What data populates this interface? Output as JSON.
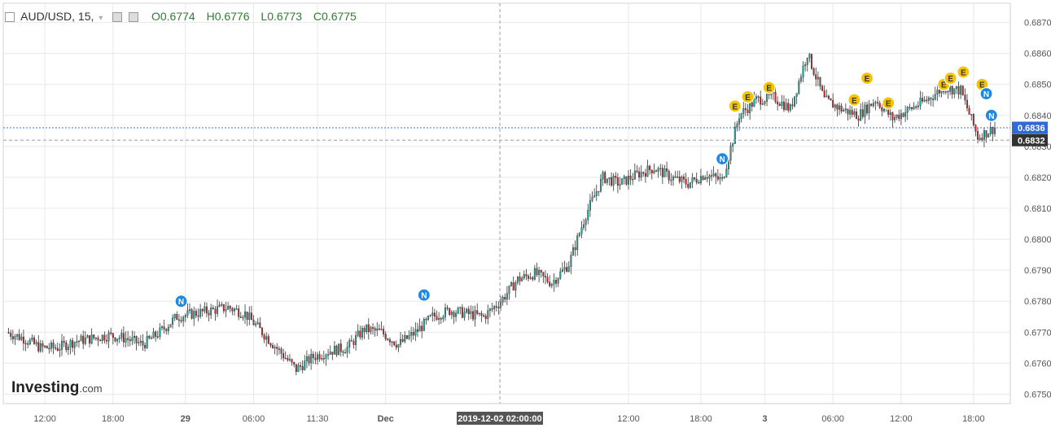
{
  "header": {
    "symbol": "AUD/USD, 15,",
    "open": "O0.6774",
    "high": "H0.6776",
    "low": "L0.6773",
    "close": "C0.6775"
  },
  "logo": {
    "name": "Investing",
    "suffix": ".com"
  },
  "price_tags": {
    "current": "0.6836",
    "crosshair": "0.6832"
  },
  "crosshair_time": "2019-12-02 02:00:00",
  "colors": {
    "up": "#26a69a",
    "down": "#c62828",
    "news": "#1e88e5",
    "event": "#f5c400",
    "grid": "#e8e8e8"
  },
  "chart_data": {
    "type": "candlestick",
    "ylim": [
      0.6748,
      0.6872
    ],
    "yticks": [
      "0.6870",
      "0.6860",
      "0.6850",
      "0.6840",
      "0.6830",
      "0.6820",
      "0.6810",
      "0.6800",
      "0.6790",
      "0.6780",
      "0.6770",
      "0.6760",
      "0.6750"
    ],
    "xticks": [
      "12:00",
      "18:00",
      "29",
      "06:00",
      "11:30",
      "Dec",
      "2019-12-02 02:00:00",
      "12:00",
      "18:00",
      "3",
      "06:00",
      "12:00",
      "18:00"
    ],
    "close_path": [
      {
        "t": 0,
        "v": 0.677
      },
      {
        "t": 2,
        "v": 0.6768
      },
      {
        "t": 4,
        "v": 0.6765
      },
      {
        "t": 6,
        "v": 0.6765
      },
      {
        "t": 8,
        "v": 0.6767
      },
      {
        "t": 12,
        "v": 0.6769
      },
      {
        "t": 14,
        "v": 0.6768
      },
      {
        "t": 16,
        "v": 0.6766
      },
      {
        "t": 18,
        "v": 0.677
      },
      {
        "t": 20,
        "v": 0.6775
      },
      {
        "t": 22,
        "v": 0.6776
      },
      {
        "t": 24,
        "v": 0.6777
      },
      {
        "t": 26,
        "v": 0.6778
      },
      {
        "t": 28,
        "v": 0.6776
      },
      {
        "t": 30,
        "v": 0.677
      },
      {
        "t": 32,
        "v": 0.6764
      },
      {
        "t": 34,
        "v": 0.6758
      },
      {
        "t": 36,
        "v": 0.6762
      },
      {
        "t": 38,
        "v": 0.6764
      },
      {
        "t": 40,
        "v": 0.6765
      },
      {
        "t": 42,
        "v": 0.6771
      },
      {
        "t": 44,
        "v": 0.677
      },
      {
        "t": 46,
        "v": 0.6766
      },
      {
        "t": 48,
        "v": 0.677
      },
      {
        "t": 50,
        "v": 0.6775
      },
      {
        "t": 52,
        "v": 0.6777
      },
      {
        "t": 54,
        "v": 0.6776
      },
      {
        "t": 56,
        "v": 0.6775
      },
      {
        "t": 58,
        "v": 0.678
      },
      {
        "t": 60,
        "v": 0.6787
      },
      {
        "t": 62,
        "v": 0.6789
      },
      {
        "t": 64,
        "v": 0.6786
      },
      {
        "t": 66,
        "v": 0.6792
      },
      {
        "t": 68,
        "v": 0.6808
      },
      {
        "t": 70,
        "v": 0.682
      },
      {
        "t": 72,
        "v": 0.6818
      },
      {
        "t": 74,
        "v": 0.6821
      },
      {
        "t": 76,
        "v": 0.6823
      },
      {
        "t": 78,
        "v": 0.682
      },
      {
        "t": 80,
        "v": 0.6818
      },
      {
        "t": 82,
        "v": 0.6821
      },
      {
        "t": 84,
        "v": 0.6819
      },
      {
        "t": 86,
        "v": 0.684
      },
      {
        "t": 88,
        "v": 0.6845
      },
      {
        "t": 90,
        "v": 0.6846
      },
      {
        "t": 92,
        "v": 0.6842
      },
      {
        "t": 94,
        "v": 0.686
      },
      {
        "t": 96,
        "v": 0.6845
      },
      {
        "t": 98,
        "v": 0.6842
      },
      {
        "t": 100,
        "v": 0.684
      },
      {
        "t": 102,
        "v": 0.6845
      },
      {
        "t": 104,
        "v": 0.6839
      },
      {
        "t": 106,
        "v": 0.6842
      },
      {
        "t": 108,
        "v": 0.6845
      },
      {
        "t": 110,
        "v": 0.6849
      },
      {
        "t": 112,
        "v": 0.6848
      },
      {
        "t": 114,
        "v": 0.6833
      },
      {
        "t": 116,
        "v": 0.6836
      }
    ],
    "markers": [
      {
        "label": "N",
        "t": 20.5,
        "v": 0.678
      },
      {
        "label": "N",
        "t": 49,
        "v": 0.6782
      },
      {
        "label": "N",
        "t": 84,
        "v": 0.6826
      },
      {
        "label": "E",
        "t": 85.5,
        "v": 0.6843
      },
      {
        "label": "E",
        "t": 87,
        "v": 0.6846
      },
      {
        "label": "E",
        "t": 89.5,
        "v": 0.6849
      },
      {
        "label": "E",
        "t": 99.5,
        "v": 0.6845
      },
      {
        "label": "E",
        "t": 101,
        "v": 0.6852
      },
      {
        "label": "E",
        "t": 103.5,
        "v": 0.6844
      },
      {
        "label": "E",
        "t": 110,
        "v": 0.685
      },
      {
        "label": "E",
        "t": 110.8,
        "v": 0.6852
      },
      {
        "label": "E",
        "t": 112.3,
        "v": 0.6854
      },
      {
        "label": "E",
        "t": 114.5,
        "v": 0.685
      },
      {
        "label": "N",
        "t": 115,
        "v": 0.6847
      },
      {
        "label": "N",
        "t": 115.6,
        "v": 0.684
      }
    ]
  }
}
